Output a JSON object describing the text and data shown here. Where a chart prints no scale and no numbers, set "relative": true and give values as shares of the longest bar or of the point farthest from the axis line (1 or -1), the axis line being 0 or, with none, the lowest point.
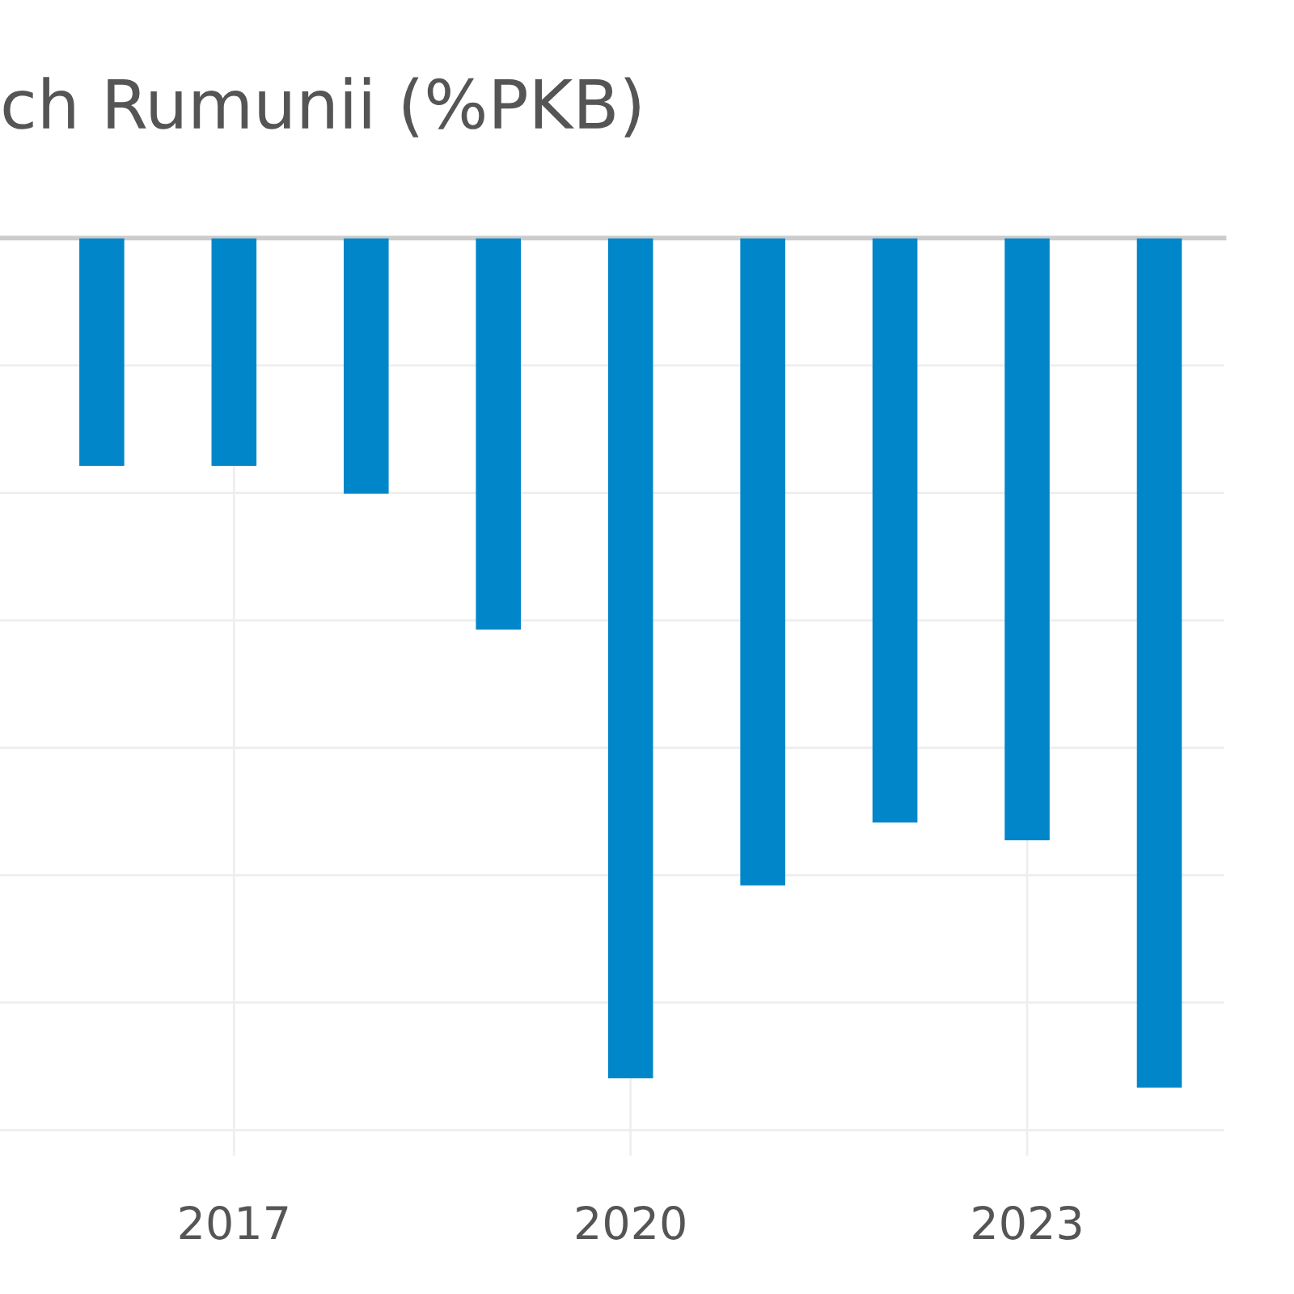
{
  "chart_data": {
    "type": "bar",
    "title": "ch Rumunii (%PKB)",
    "x": [
      2016,
      2017,
      2018,
      2019,
      2020,
      2021,
      2022,
      2023,
      2024
    ],
    "values": [
      -0.268,
      -0.268,
      -0.301,
      -0.461,
      -0.989,
      -0.762,
      -0.688,
      -0.709,
      -1
    ],
    "color": "#0086c9",
    "relative": true,
    "xlim": [
      2015.23,
      2024.49
    ],
    "xticks": [
      2017,
      2020,
      2023
    ],
    "grid": true
  }
}
